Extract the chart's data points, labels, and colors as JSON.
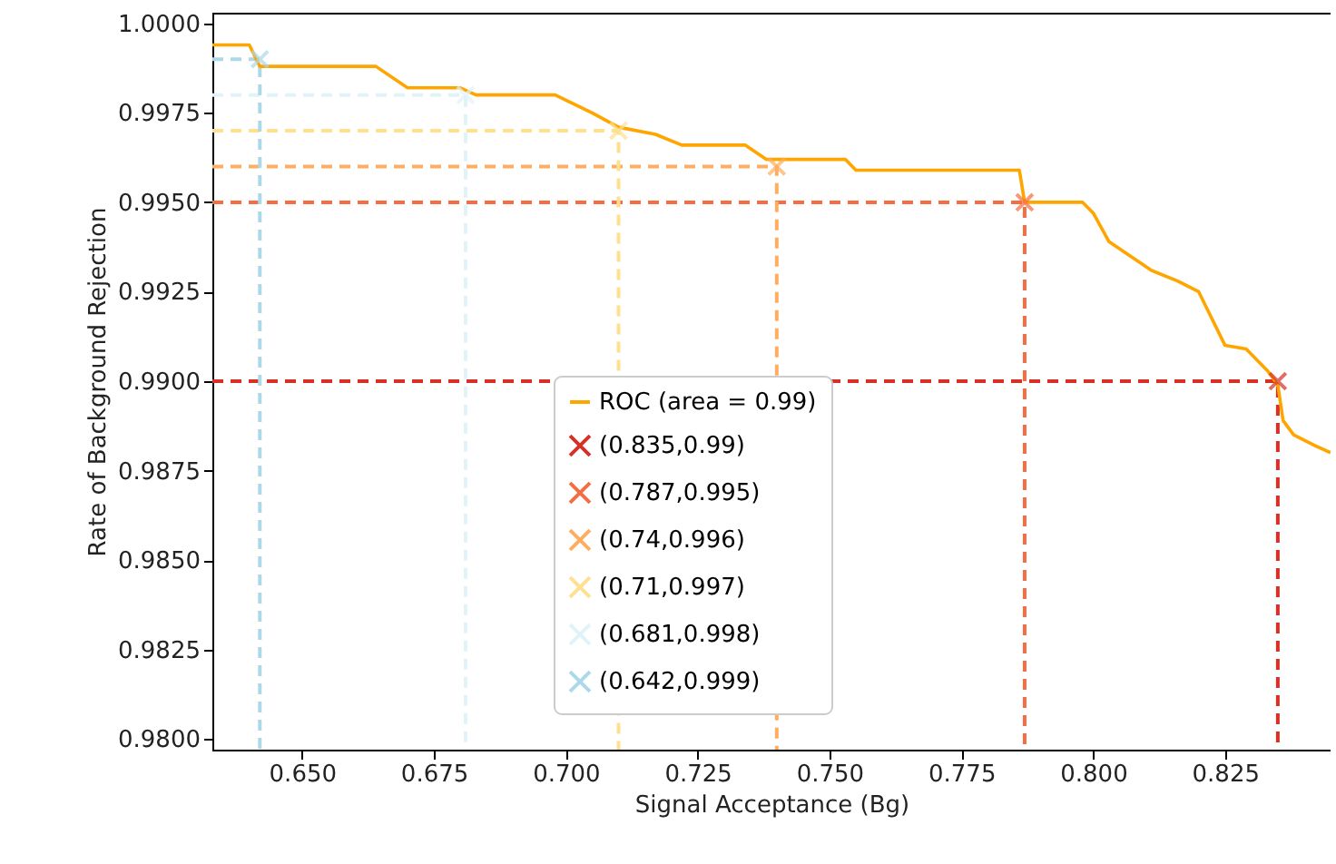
{
  "chart_data": {
    "type": "line",
    "xlabel": "Signal Acceptance (Bg)",
    "ylabel": "Rate of Background Rejection",
    "xlim": [
      0.633,
      0.845
    ],
    "ylim": [
      0.9797,
      1.0003
    ],
    "xticks": [
      {
        "value": 0.65,
        "label": "0.650"
      },
      {
        "value": 0.675,
        "label": "0.675"
      },
      {
        "value": 0.7,
        "label": "0.700"
      },
      {
        "value": 0.725,
        "label": "0.725"
      },
      {
        "value": 0.75,
        "label": "0.750"
      },
      {
        "value": 0.775,
        "label": "0.775"
      },
      {
        "value": 0.8,
        "label": "0.800"
      },
      {
        "value": 0.825,
        "label": "0.825"
      }
    ],
    "yticks": [
      {
        "value": 0.98,
        "label": "0.9800"
      },
      {
        "value": 0.9825,
        "label": "0.9825"
      },
      {
        "value": 0.985,
        "label": "0.9850"
      },
      {
        "value": 0.9875,
        "label": "0.9875"
      },
      {
        "value": 0.99,
        "label": "0.9900"
      },
      {
        "value": 0.9925,
        "label": "0.9925"
      },
      {
        "value": 0.995,
        "label": "0.9950"
      },
      {
        "value": 0.9975,
        "label": "0.9975"
      },
      {
        "value": 1.0,
        "label": "1.0000"
      }
    ],
    "grid": false,
    "legend": "bottom",
    "series": [
      {
        "line_style": "dashed",
        "color": "#d73027",
        "x": [
          0.633,
          0.835,
          0.835
        ],
        "values": [
          0.99,
          0.99,
          0.9797
        ]
      },
      {
        "line_style": "dashed",
        "color": "#f46d43",
        "x": [
          0.633,
          0.787,
          0.787
        ],
        "values": [
          0.995,
          0.995,
          0.9797
        ]
      },
      {
        "line_style": "dashed",
        "color": "#fdae61",
        "x": [
          0.633,
          0.74,
          0.74
        ],
        "values": [
          0.996,
          0.996,
          0.9797
        ]
      },
      {
        "line_style": "dashed",
        "color": "#fee090",
        "x": [
          0.633,
          0.71,
          0.71
        ],
        "values": [
          0.997,
          0.997,
          0.9797
        ]
      },
      {
        "line_style": "dashed",
        "color": "#e0f3f8",
        "x": [
          0.633,
          0.681,
          0.681
        ],
        "values": [
          0.998,
          0.998,
          0.9797
        ]
      },
      {
        "line_style": "dashed",
        "color": "#abd9e9",
        "x": [
          0.633,
          0.642,
          0.642
        ],
        "values": [
          0.999,
          0.999,
          0.9797
        ]
      },
      {
        "name": "ROC (area = 0.99)",
        "line_style": "solid",
        "color": "#ffa500",
        "x": [
          0.633,
          0.64,
          0.642,
          0.664,
          0.67,
          0.68,
          0.683,
          0.698,
          0.705,
          0.71,
          0.717,
          0.722,
          0.734,
          0.738,
          0.753,
          0.755,
          0.786,
          0.787,
          0.798,
          0.8,
          0.803,
          0.811,
          0.816,
          0.82,
          0.825,
          0.829,
          0.833,
          0.835,
          0.836,
          0.838,
          0.842,
          0.845
        ],
        "values": [
          0.9994,
          0.9994,
          0.9988,
          0.9988,
          0.9982,
          0.9982,
          0.998,
          0.998,
          0.9975,
          0.9971,
          0.9969,
          0.9966,
          0.9966,
          0.9962,
          0.9962,
          0.9959,
          0.9959,
          0.995,
          0.995,
          0.9947,
          0.9939,
          0.9931,
          0.9928,
          0.9925,
          0.991,
          0.9909,
          0.9903,
          0.9899,
          0.9889,
          0.9885,
          0.9882,
          0.988
        ]
      },
      {
        "name": "(0.835,0.99)",
        "type": "scatter",
        "marker": "cross",
        "color": "#d73027",
        "x": [
          0.835
        ],
        "values": [
          0.99
        ]
      },
      {
        "name": "(0.787,0.995)",
        "type": "scatter",
        "marker": "cross",
        "color": "#f46d43",
        "x": [
          0.787
        ],
        "values": [
          0.995
        ]
      },
      {
        "name": "(0.74,0.996)",
        "type": "scatter",
        "marker": "cross",
        "color": "#fdae61",
        "x": [
          0.74
        ],
        "values": [
          0.996
        ]
      },
      {
        "name": "(0.71,0.997)",
        "type": "scatter",
        "marker": "cross",
        "color": "#fee090",
        "x": [
          0.71
        ],
        "values": [
          0.997
        ]
      },
      {
        "name": "(0.681,0.998)",
        "type": "scatter",
        "marker": "cross",
        "color": "#e0f3f8",
        "x": [
          0.681
        ],
        "values": [
          0.998
        ]
      },
      {
        "name": "(0.642,0.999)",
        "type": "scatter",
        "marker": "cross",
        "color": "#abd9e9",
        "x": [
          0.642
        ],
        "values": [
          0.999
        ]
      }
    ]
  }
}
